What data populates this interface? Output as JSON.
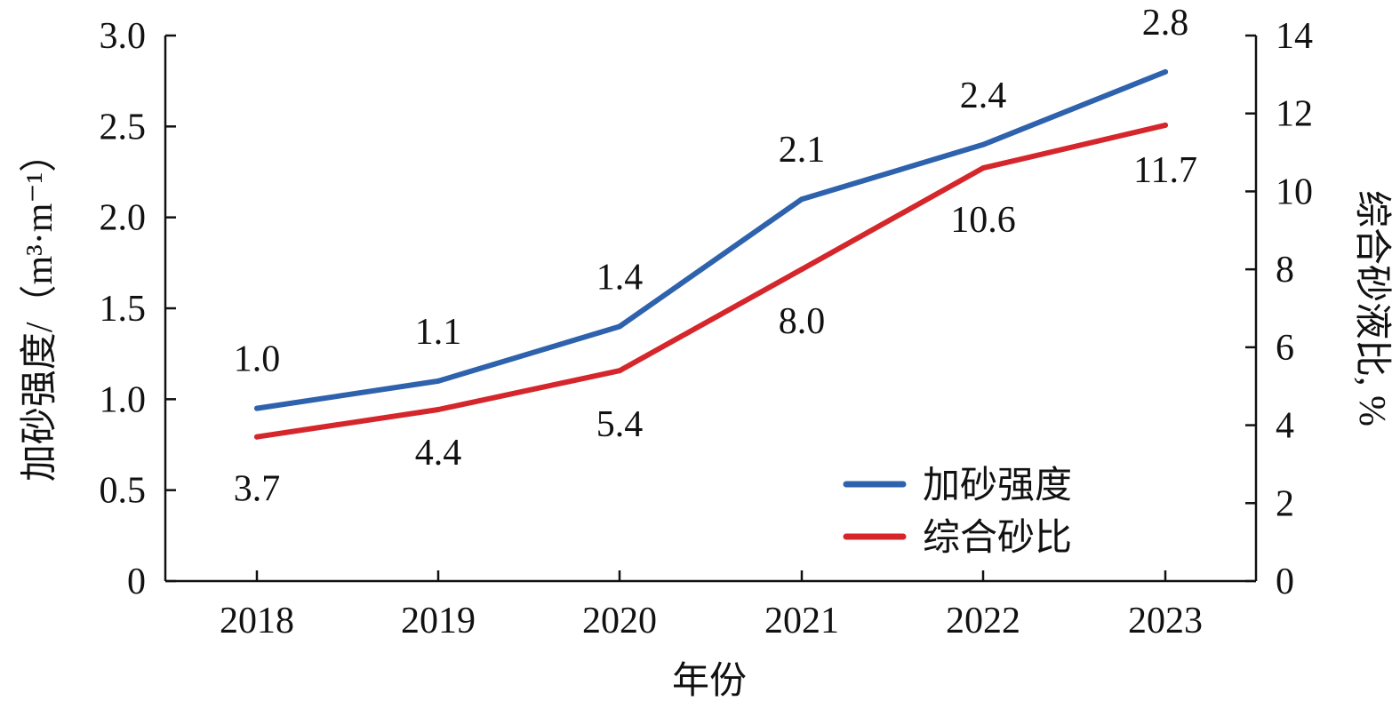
{
  "chart_data": {
    "type": "line",
    "categories": [
      "2018",
      "2019",
      "2020",
      "2021",
      "2022",
      "2023"
    ],
    "xlabel": "年份",
    "ylabel_left": "加砂强度/（m³·m⁻¹）",
    "ylabel_right": "综合砂液比, %",
    "ylim_left": [
      0,
      3.0
    ],
    "ylim_right": [
      0,
      14
    ],
    "yticks_left": [
      "0",
      "0.5",
      "1.0",
      "1.5",
      "2.0",
      "2.5",
      "3.0"
    ],
    "yticks_right": [
      "0",
      "2",
      "4",
      "6",
      "8",
      "10",
      "12",
      "14"
    ],
    "legend_position": "bottom-right",
    "series": [
      {
        "name": "加砂强度",
        "axis": "left",
        "color": "#2e62ad",
        "values": [
          0.95,
          1.1,
          1.4,
          2.1,
          2.4,
          2.8
        ],
        "labels": [
          "1.0",
          "1.1",
          "1.4",
          "2.1",
          "2.4",
          "2.8"
        ]
      },
      {
        "name": "综合砂比",
        "axis": "right",
        "color": "#d5262b",
        "values": [
          3.7,
          4.4,
          5.4,
          8.0,
          10.6,
          11.7
        ],
        "labels": [
          "3.7",
          "4.4",
          "5.4",
          "8.0",
          "10.6",
          "11.7"
        ]
      }
    ]
  }
}
